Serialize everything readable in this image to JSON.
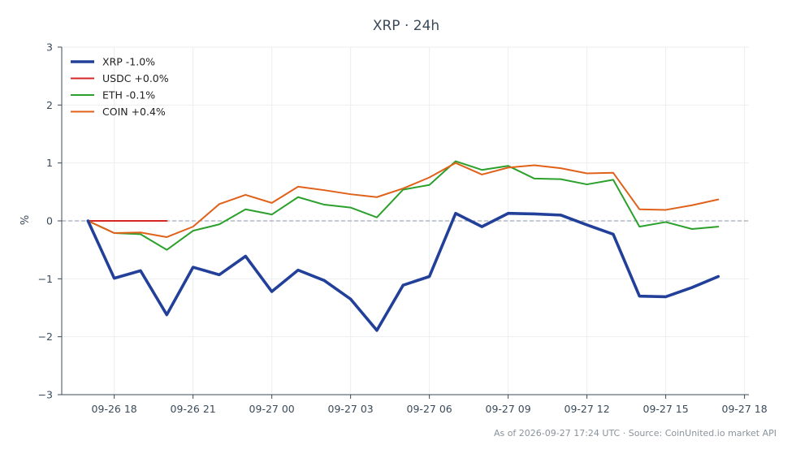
{
  "chart_data": {
    "type": "line",
    "title": "XRP · 24h",
    "ylabel": "%",
    "ylim": [
      -3,
      3
    ],
    "yticks": [
      -3,
      -2,
      -1,
      0,
      1,
      2,
      3
    ],
    "ytick_labels": [
      "−3",
      "−2",
      "−1",
      "0",
      "1",
      "2",
      "3"
    ],
    "xlim": [
      "2026-09-26 16:00",
      "2026-09-27 18:10"
    ],
    "xticks": [
      "2026-09-26 18:00",
      "2026-09-26 21:00",
      "2026-09-27 00:00",
      "2026-09-27 03:00",
      "2026-09-27 06:00",
      "2026-09-27 09:00",
      "2026-09-27 12:00",
      "2026-09-27 15:00",
      "2026-09-27 18:00"
    ],
    "xtick_labels": [
      "09-26 18",
      "09-26 21",
      "09-27 00",
      "09-27 03",
      "09-27 06",
      "09-27 09",
      "09-27 12",
      "09-27 15",
      "09-27 18"
    ],
    "grid": true,
    "zero_line": true,
    "legend_position": "top-left",
    "series": [
      {
        "name": "XRP -1.0%",
        "color": "#22409a",
        "x": [
          "2026-09-26 17:00",
          "2026-09-26 18:00",
          "2026-09-26 19:00",
          "2026-09-26 20:00",
          "2026-09-26 21:00",
          "2026-09-26 22:00",
          "2026-09-26 23:00",
          "2026-09-27 00:00",
          "2026-09-27 01:00",
          "2026-09-27 02:00",
          "2026-09-27 03:00",
          "2026-09-27 04:00",
          "2026-09-27 05:00",
          "2026-09-27 06:00",
          "2026-09-27 07:00",
          "2026-09-27 08:00",
          "2026-09-27 09:00",
          "2026-09-27 10:00",
          "2026-09-27 11:00",
          "2026-09-27 12:00",
          "2026-09-27 13:00",
          "2026-09-27 14:00",
          "2026-09-27 15:00",
          "2026-09-27 16:00",
          "2026-09-27 17:00"
        ],
        "values": [
          0.0,
          -0.99,
          -0.86,
          -1.62,
          -0.8,
          -0.93,
          -0.61,
          -1.22,
          -0.85,
          -1.03,
          -1.35,
          -1.89,
          -1.11,
          -0.96,
          0.13,
          -0.1,
          0.13,
          0.12,
          0.1,
          -0.07,
          -0.23,
          -1.3,
          -1.31,
          -1.15,
          -0.96
        ]
      },
      {
        "name": "USDC +0.0%",
        "color": "#d62728",
        "x": [
          "2026-09-26 17:00",
          "2026-09-26 18:00",
          "2026-09-26 19:00",
          "2026-09-26 20:00"
        ],
        "values": [
          0.0,
          0.0,
          0.0,
          0.0
        ]
      },
      {
        "name": "ETH -0.1%",
        "color": "#2ca02c",
        "x": [
          "2026-09-26 17:00",
          "2026-09-26 18:00",
          "2026-09-26 19:00",
          "2026-09-26 20:00",
          "2026-09-26 21:00",
          "2026-09-26 22:00",
          "2026-09-26 23:00",
          "2026-09-27 00:00",
          "2026-09-27 01:00",
          "2026-09-27 02:00",
          "2026-09-27 03:00",
          "2026-09-27 04:00",
          "2026-09-27 05:00",
          "2026-09-27 06:00",
          "2026-09-27 07:00",
          "2026-09-27 08:00",
          "2026-09-27 09:00",
          "2026-09-27 10:00",
          "2026-09-27 11:00",
          "2026-09-27 12:00",
          "2026-09-27 13:00",
          "2026-09-27 14:00",
          "2026-09-27 15:00",
          "2026-09-27 16:00",
          "2026-09-27 17:00"
        ],
        "values": [
          0.0,
          -0.21,
          -0.23,
          -0.5,
          -0.17,
          -0.06,
          0.2,
          0.11,
          0.41,
          0.28,
          0.23,
          0.06,
          0.54,
          0.62,
          1.03,
          0.88,
          0.95,
          0.73,
          0.72,
          0.63,
          0.71,
          -0.1,
          -0.02,
          -0.14,
          -0.1
        ]
      },
      {
        "name": "COIN +0.4%",
        "color": "#e0611a",
        "x": [
          "2026-09-26 17:00",
          "2026-09-26 18:00",
          "2026-09-26 19:00",
          "2026-09-26 20:00",
          "2026-09-26 21:00",
          "2026-09-26 22:00",
          "2026-09-26 23:00",
          "2026-09-27 00:00",
          "2026-09-27 01:00",
          "2026-09-27 02:00",
          "2026-09-27 03:00",
          "2026-09-27 04:00",
          "2026-09-27 05:00",
          "2026-09-27 06:00",
          "2026-09-27 07:00",
          "2026-09-27 08:00",
          "2026-09-27 09:00",
          "2026-09-27 10:00",
          "2026-09-27 11:00",
          "2026-09-27 12:00",
          "2026-09-27 13:00",
          "2026-09-27 14:00",
          "2026-09-27 15:00",
          "2026-09-27 16:00",
          "2026-09-27 17:00"
        ],
        "values": [
          0.0,
          -0.21,
          -0.2,
          -0.28,
          -0.1,
          0.29,
          0.45,
          0.31,
          0.59,
          0.53,
          0.46,
          0.41,
          0.56,
          0.75,
          1.0,
          0.8,
          0.92,
          0.96,
          0.91,
          0.82,
          0.83,
          0.2,
          0.19,
          0.27,
          0.37
        ]
      }
    ],
    "footer": "As of 2026-09-27 17:24 UTC · Source: CoinUnited.io market API"
  }
}
